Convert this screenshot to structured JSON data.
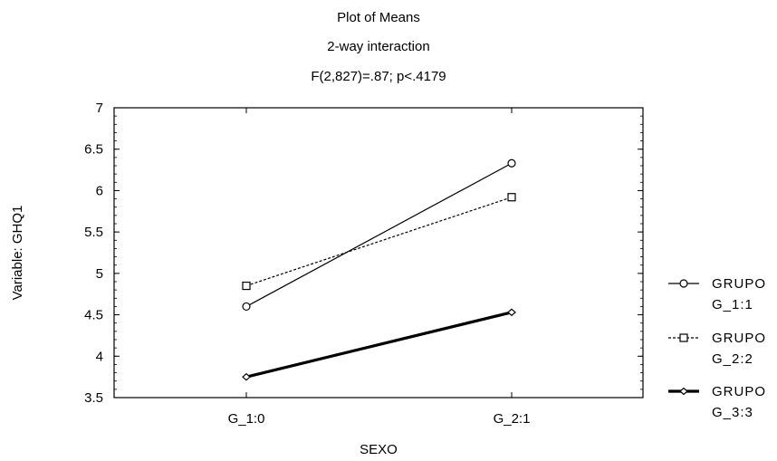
{
  "chart_data": {
    "type": "line",
    "title": "Plot of Means",
    "subtitle": "2-way interaction",
    "subtitle2": "F(2,827)=.87; p<.4179",
    "xlabel": "SEXO",
    "ylabel": "Variable: GHQ1",
    "categories": [
      "G_1:0",
      "G_2:1"
    ],
    "ylim": [
      3.5,
      7
    ],
    "yticks": [
      "3.5",
      "4",
      "4.5",
      "5",
      "5.5",
      "6",
      "6.5",
      "7"
    ],
    "grid": false,
    "legend_position": "right",
    "series": [
      {
        "name_line1": "GRUPO",
        "name_line2": "G_1:1",
        "values": [
          4.6,
          6.33
        ],
        "style": "solid-thin",
        "marker": "circle"
      },
      {
        "name_line1": "GRUPO",
        "name_line2": "G_2:2",
        "values": [
          4.85,
          5.92
        ],
        "style": "dashed",
        "marker": "square"
      },
      {
        "name_line1": "GRUPO",
        "name_line2": "G_3:3",
        "values": [
          3.75,
          4.53
        ],
        "style": "solid-thick",
        "marker": "diamond"
      }
    ]
  }
}
